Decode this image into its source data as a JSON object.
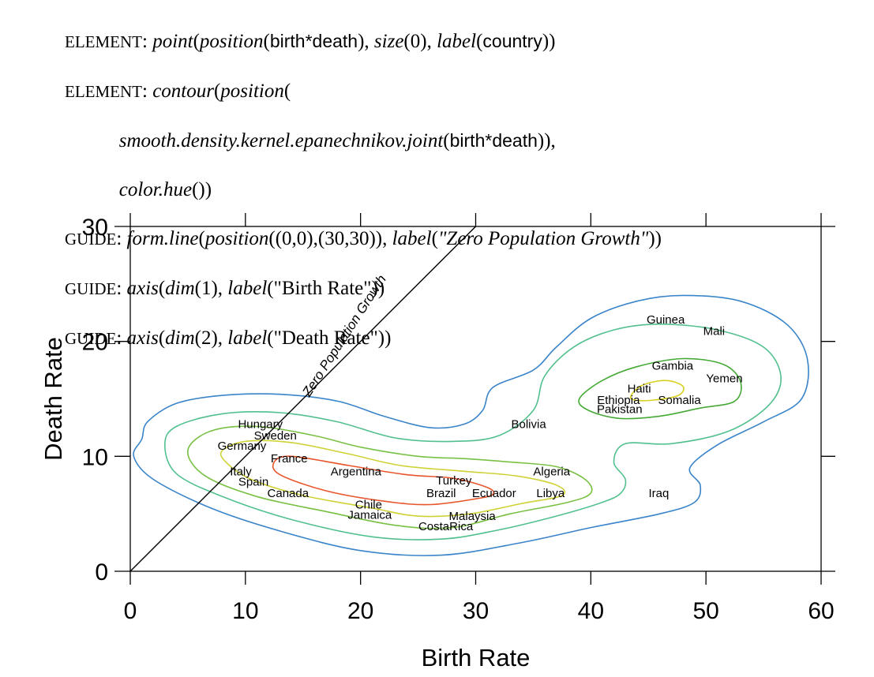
{
  "code": {
    "line1": {
      "kw": "ELEMENT",
      "f1": "point",
      "f2": "position",
      "v1": "birth",
      "v2": "death",
      "f3": "size",
      "n1": "0",
      "f4": "label",
      "v3": "country"
    },
    "line2": {
      "kw": "ELEMENT",
      "f1": "contour",
      "f2": "position"
    },
    "line3": {
      "f1": "smooth.density.kernel.epanechnikov.joint",
      "v1": "birth",
      "v2": "death"
    },
    "line4": {
      "f1": "color.hue"
    },
    "line5": {
      "kw": "GUIDE",
      "f1": "form.line",
      "f2": "position",
      "pts": "((0,0),(30,30))",
      "f3": "label",
      "s1": "\"Zero Population Growth\""
    },
    "line6": {
      "kw": "GUIDE",
      "f1": "axis",
      "f2": "dim",
      "n1": "1",
      "f3": "label",
      "s1": "(\"Birth Rate\")"
    },
    "line7": {
      "kw": "GUIDE",
      "f1": "axis",
      "f2": "dim",
      "n1": "2",
      "f3": "label",
      "s1": "(\"Death Rate\")"
    }
  },
  "chart_data": {
    "type": "scatter",
    "xlabel": "Birth Rate",
    "ylabel": "Death Rate",
    "xlim": [
      0,
      60
    ],
    "ylim": [
      0,
      30
    ],
    "xticks": [
      0,
      10,
      20,
      30,
      40,
      50,
      60
    ],
    "yticks": [
      0,
      10,
      20,
      30
    ],
    "grid": false,
    "reference_line": {
      "label": "Zero Population Growth",
      "from": [
        0,
        0
      ],
      "to": [
        30,
        30
      ]
    },
    "points": [
      {
        "label": "Guinea",
        "x": 46.5,
        "y": 21.9
      },
      {
        "label": "Mali",
        "x": 50.7,
        "y": 20.9
      },
      {
        "label": "Gambia",
        "x": 47.1,
        "y": 17.9
      },
      {
        "label": "Yemen",
        "x": 51.6,
        "y": 16.8
      },
      {
        "label": "Haiti",
        "x": 44.2,
        "y": 15.9
      },
      {
        "label": "Ethiopia",
        "x": 42.4,
        "y": 14.9
      },
      {
        "label": "Somalia",
        "x": 47.7,
        "y": 14.9
      },
      {
        "label": "Pakistan",
        "x": 42.5,
        "y": 14.1
      },
      {
        "label": "Bolivia",
        "x": 34.6,
        "y": 12.8
      },
      {
        "label": "Hungary",
        "x": 11.3,
        "y": 12.8
      },
      {
        "label": "Sweden",
        "x": 12.6,
        "y": 11.8
      },
      {
        "label": "Germany",
        "x": 9.7,
        "y": 10.9
      },
      {
        "label": "France",
        "x": 13.8,
        "y": 9.8
      },
      {
        "label": "Argentina",
        "x": 19.6,
        "y": 8.7
      },
      {
        "label": "Algeria",
        "x": 36.6,
        "y": 8.7
      },
      {
        "label": "Italy",
        "x": 9.6,
        "y": 8.7
      },
      {
        "label": "Spain",
        "x": 10.7,
        "y": 7.8
      },
      {
        "label": "Turkey",
        "x": 28.1,
        "y": 7.9
      },
      {
        "label": "Canada",
        "x": 13.7,
        "y": 6.8
      },
      {
        "label": "Brazil",
        "x": 27.0,
        "y": 6.8
      },
      {
        "label": "Ecuador",
        "x": 31.6,
        "y": 6.8
      },
      {
        "label": "Libya",
        "x": 36.5,
        "y": 6.8
      },
      {
        "label": "Iraq",
        "x": 45.9,
        "y": 6.8
      },
      {
        "label": "Chile",
        "x": 20.7,
        "y": 5.8
      },
      {
        "label": "Jamaica",
        "x": 20.8,
        "y": 4.9
      },
      {
        "label": "Malaysia",
        "x": 29.7,
        "y": 4.8
      },
      {
        "label": "CostaRica",
        "x": 27.4,
        "y": 3.9
      }
    ],
    "contours": [
      {
        "level": 1,
        "color": "#3a84c9",
        "points": [
          [
            1,
            11.5
          ],
          [
            1.5,
            13
          ],
          [
            4,
            14.6
          ],
          [
            8,
            15.3
          ],
          [
            13,
            15.4
          ],
          [
            18,
            14.8
          ],
          [
            22,
            13.5
          ],
          [
            26,
            12.5
          ],
          [
            29,
            12.8
          ],
          [
            30.6,
            14
          ],
          [
            31.5,
            16
          ],
          [
            35,
            17.5
          ],
          [
            37,
            19.5
          ],
          [
            40,
            22
          ],
          [
            44,
            23.5
          ],
          [
            48,
            24
          ],
          [
            53,
            23.5
          ],
          [
            57,
            21.5
          ],
          [
            58.8,
            18.5
          ],
          [
            58.3,
            15
          ],
          [
            55,
            13
          ],
          [
            51,
            11
          ],
          [
            48.6,
            9
          ],
          [
            49.5,
            7.5
          ],
          [
            49,
            6
          ],
          [
            46,
            5
          ],
          [
            40,
            3.8
          ],
          [
            34,
            2.5
          ],
          [
            27,
            1.4
          ],
          [
            20,
            1.8
          ],
          [
            13,
            3.5
          ],
          [
            7,
            5.5
          ],
          [
            2,
            8
          ],
          [
            0.3,
            10
          ]
        ]
      },
      {
        "level": 2,
        "color": "#52c08e",
        "points": [
          [
            3,
            11
          ],
          [
            4,
            12.6
          ],
          [
            8,
            13.7
          ],
          [
            13,
            13.8
          ],
          [
            18,
            13
          ],
          [
            23,
            11.6
          ],
          [
            28,
            11.3
          ],
          [
            32,
            11.8
          ],
          [
            35,
            14
          ],
          [
            36,
            17
          ],
          [
            38.5,
            19.5
          ],
          [
            42,
            21
          ],
          [
            46,
            21.5
          ],
          [
            51,
            21
          ],
          [
            55,
            19.5
          ],
          [
            56.5,
            17
          ],
          [
            55.5,
            14.5
          ],
          [
            52,
            12.2
          ],
          [
            47,
            11.1
          ],
          [
            43,
            11.1
          ],
          [
            42,
            9.5
          ],
          [
            43,
            8
          ],
          [
            42.6,
            6.8
          ],
          [
            41,
            6
          ],
          [
            37,
            4.8
          ],
          [
            32,
            3.6
          ],
          [
            27,
            2.8
          ],
          [
            21,
            3
          ],
          [
            14,
            4.5
          ],
          [
            8,
            6.5
          ],
          [
            4,
            8.5
          ]
        ]
      },
      {
        "level": 3,
        "color": "#79c043",
        "points": [
          [
            5,
            10.5
          ],
          [
            7,
            12.2
          ],
          [
            11,
            12.6
          ],
          [
            16,
            11.8
          ],
          [
            20,
            10.8
          ],
          [
            25,
            10
          ],
          [
            29,
            9.8
          ],
          [
            33,
            9.5
          ],
          [
            37,
            9.1
          ],
          [
            39.5,
            8
          ],
          [
            40,
            6.8
          ],
          [
            38,
            6
          ],
          [
            33,
            5
          ],
          [
            28,
            3.8
          ],
          [
            23,
            4
          ],
          [
            17,
            5.2
          ],
          [
            11,
            6.5
          ],
          [
            6.5,
            8.3
          ]
        ]
      },
      {
        "level": 4,
        "color": "#45a935",
        "points": [
          [
            39,
            15
          ],
          [
            41,
            16.6
          ],
          [
            44,
            17.8
          ],
          [
            48,
            18.5
          ],
          [
            51.5,
            18
          ],
          [
            53,
            16.5
          ],
          [
            52.5,
            14.8
          ],
          [
            49.5,
            14.2
          ],
          [
            46,
            13.5
          ],
          [
            42.5,
            13.3
          ],
          [
            39.8,
            14
          ]
        ]
      },
      {
        "level": 5,
        "color": "#cfd235",
        "points": [
          [
            8,
            10.5
          ],
          [
            10,
            11.3
          ],
          [
            14,
            11.2
          ],
          [
            19,
            10.2
          ],
          [
            23.5,
            9.2
          ],
          [
            29,
            8.7
          ],
          [
            33.5,
            8.3
          ],
          [
            37,
            7.5
          ],
          [
            37.5,
            6.6
          ],
          [
            34,
            5.9
          ],
          [
            29.5,
            5
          ],
          [
            25,
            4.8
          ],
          [
            21,
            5.5
          ],
          [
            15,
            6.6
          ],
          [
            10.5,
            8
          ],
          [
            8.3,
            9.5
          ]
        ]
      },
      {
        "level": 6,
        "color": "#d8d020",
        "points": [
          [
            43.5,
            15.3
          ],
          [
            44.5,
            16.2
          ],
          [
            46.5,
            16.6
          ],
          [
            48,
            16.1
          ],
          [
            47.6,
            15.3
          ],
          [
            45.5,
            14.9
          ],
          [
            43.8,
            14.9
          ]
        ]
      },
      {
        "level": 7,
        "color": "#e8552a",
        "points": [
          [
            12.5,
            9.5
          ],
          [
            14,
            10
          ],
          [
            19,
            9.2
          ],
          [
            24,
            8.4
          ],
          [
            28,
            8.1
          ],
          [
            31,
            7.3
          ],
          [
            31.5,
            6.7
          ],
          [
            30,
            6.3
          ],
          [
            26,
            5.8
          ],
          [
            22,
            6.1
          ],
          [
            17,
            7
          ],
          [
            13,
            8.4
          ]
        ]
      }
    ]
  }
}
